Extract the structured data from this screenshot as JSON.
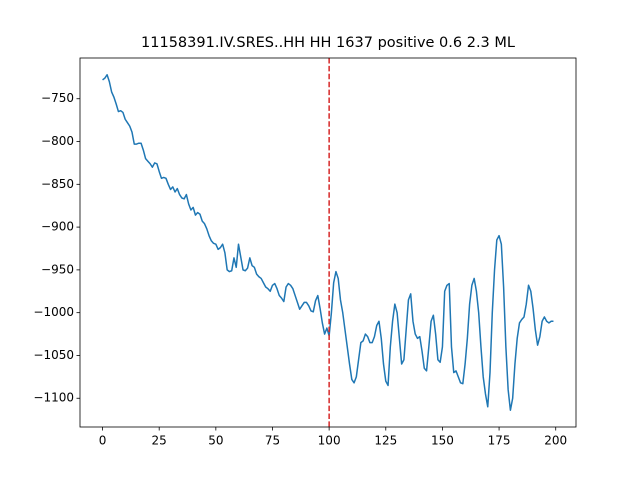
{
  "chart_data": {
    "type": "line",
    "title": "11158391.IV.SRES..HH HH 1637 positive 0.6 2.3 ML",
    "color": "#1f77b4",
    "vline": 100,
    "vline_color": "#d62728",
    "xlim": [
      -9.95,
      208.95
    ],
    "xticks": [
      0,
      25,
      50,
      75,
      100,
      125,
      150,
      175,
      200
    ],
    "ylim": [
      -1133.6,
      -702.4
    ],
    "yticks": [
      {
        "value": -750,
        "label": "−750"
      },
      {
        "value": -800,
        "label": "−800"
      },
      {
        "value": -850,
        "label": "−850"
      },
      {
        "value": -900,
        "label": "−900"
      },
      {
        "value": -950,
        "label": "−950"
      },
      {
        "value": -1000,
        "label": "−1000"
      },
      {
        "value": -1050,
        "label": "−1050"
      },
      {
        "value": -1100,
        "label": "−1100"
      }
    ],
    "values": [
      -728,
      -726,
      -722,
      -730,
      -742,
      -748,
      -756,
      -765,
      -764,
      -766,
      -774,
      -778,
      -782,
      -789,
      -803,
      -803,
      -802,
      -802,
      -810,
      -820,
      -823,
      -826,
      -830,
      -825,
      -826,
      -835,
      -843,
      -842,
      -843,
      -850,
      -856,
      -853,
      -859,
      -855,
      -862,
      -866,
      -867,
      -862,
      -873,
      -880,
      -877,
      -886,
      -883,
      -885,
      -893,
      -896,
      -902,
      -910,
      -916,
      -919,
      -920,
      -926,
      -924,
      -920,
      -930,
      -950,
      -952,
      -951,
      -936,
      -947,
      -920,
      -935,
      -950,
      -951,
      -948,
      -936,
      -945,
      -947,
      -955,
      -958,
      -960,
      -965,
      -970,
      -972,
      -975,
      -968,
      -966,
      -972,
      -980,
      -983,
      -987,
      -970,
      -966,
      -968,
      -972,
      -980,
      -988,
      -996,
      -992,
      -988,
      -988,
      -992,
      -998,
      -999,
      -986,
      -980,
      -995,
      -1012,
      -1025,
      -1018,
      -1027,
      -1000,
      -965,
      -952,
      -960,
      -985,
      -1000,
      -1020,
      -1040,
      -1060,
      -1078,
      -1082,
      -1075,
      -1055,
      -1035,
      -1033,
      -1025,
      -1028,
      -1035,
      -1035,
      -1028,
      -1015,
      -1010,
      -1030,
      -1060,
      -1080,
      -1085,
      -1040,
      -1010,
      -990,
      -1000,
      -1030,
      -1060,
      -1055,
      -1020,
      -985,
      -978,
      -1010,
      -1025,
      -1030,
      -1028,
      -1045,
      -1065,
      -1068,
      -1040,
      -1010,
      -1003,
      -1025,
      -1055,
      -1058,
      -1040,
      -975,
      -968,
      -966,
      -1040,
      -1070,
      -1068,
      -1075,
      -1082,
      -1083,
      -1060,
      -1030,
      -990,
      -968,
      -960,
      -975,
      -1000,
      -1040,
      -1075,
      -1095,
      -1110,
      -1070,
      -1000,
      -950,
      -915,
      -910,
      -920,
      -970,
      -1040,
      -1090,
      -1114,
      -1100,
      -1060,
      -1030,
      -1012,
      -1008,
      -1005,
      -990,
      -968,
      -975,
      -995,
      -1020,
      -1038,
      -1028,
      -1010,
      -1005,
      -1010,
      -1012,
      -1010,
      -1010
    ]
  }
}
